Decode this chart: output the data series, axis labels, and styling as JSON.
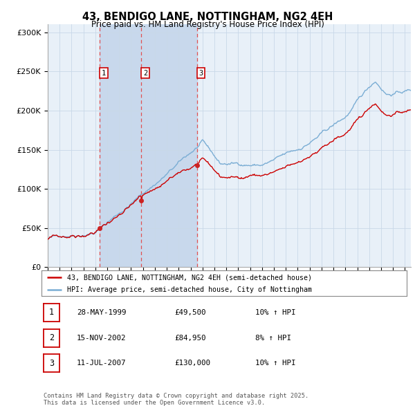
{
  "title": "43, BENDIGO LANE, NOTTINGHAM, NG2 4EH",
  "subtitle": "Price paid vs. HM Land Registry's House Price Index (HPI)",
  "legend_line1": "43, BENDIGO LANE, NOTTINGHAM, NG2 4EH (semi-detached house)",
  "legend_line2": "HPI: Average price, semi-detached house, City of Nottingham",
  "sale1_date": "28-MAY-1999",
  "sale1_price": 49500,
  "sale1_year": 1999.38,
  "sale1_hpi": "10% ↑ HPI",
  "sale2_date": "15-NOV-2002",
  "sale2_price": 84950,
  "sale2_year": 2002.87,
  "sale2_hpi": "8% ↑ HPI",
  "sale3_date": "11-JUL-2007",
  "sale3_price": 130000,
  "sale3_year": 2007.53,
  "sale3_hpi": "10% ↑ HPI",
  "price_line_color": "#cc0000",
  "hpi_line_color": "#7aadd4",
  "grid_color": "#c8d8e8",
  "bg_color": "#dce8f4",
  "plot_bg_color": "#e8f0f8",
  "dashed_line_color": "#e05050",
  "shade_color": "#c8d8ec",
  "footer": "Contains HM Land Registry data © Crown copyright and database right 2025.\nThis data is licensed under the Open Government Licence v3.0.",
  "ylim": [
    0,
    310000
  ],
  "yticks": [
    0,
    50000,
    100000,
    150000,
    200000,
    250000,
    300000
  ],
  "xmin": 1995,
  "xmax": 2025.5
}
